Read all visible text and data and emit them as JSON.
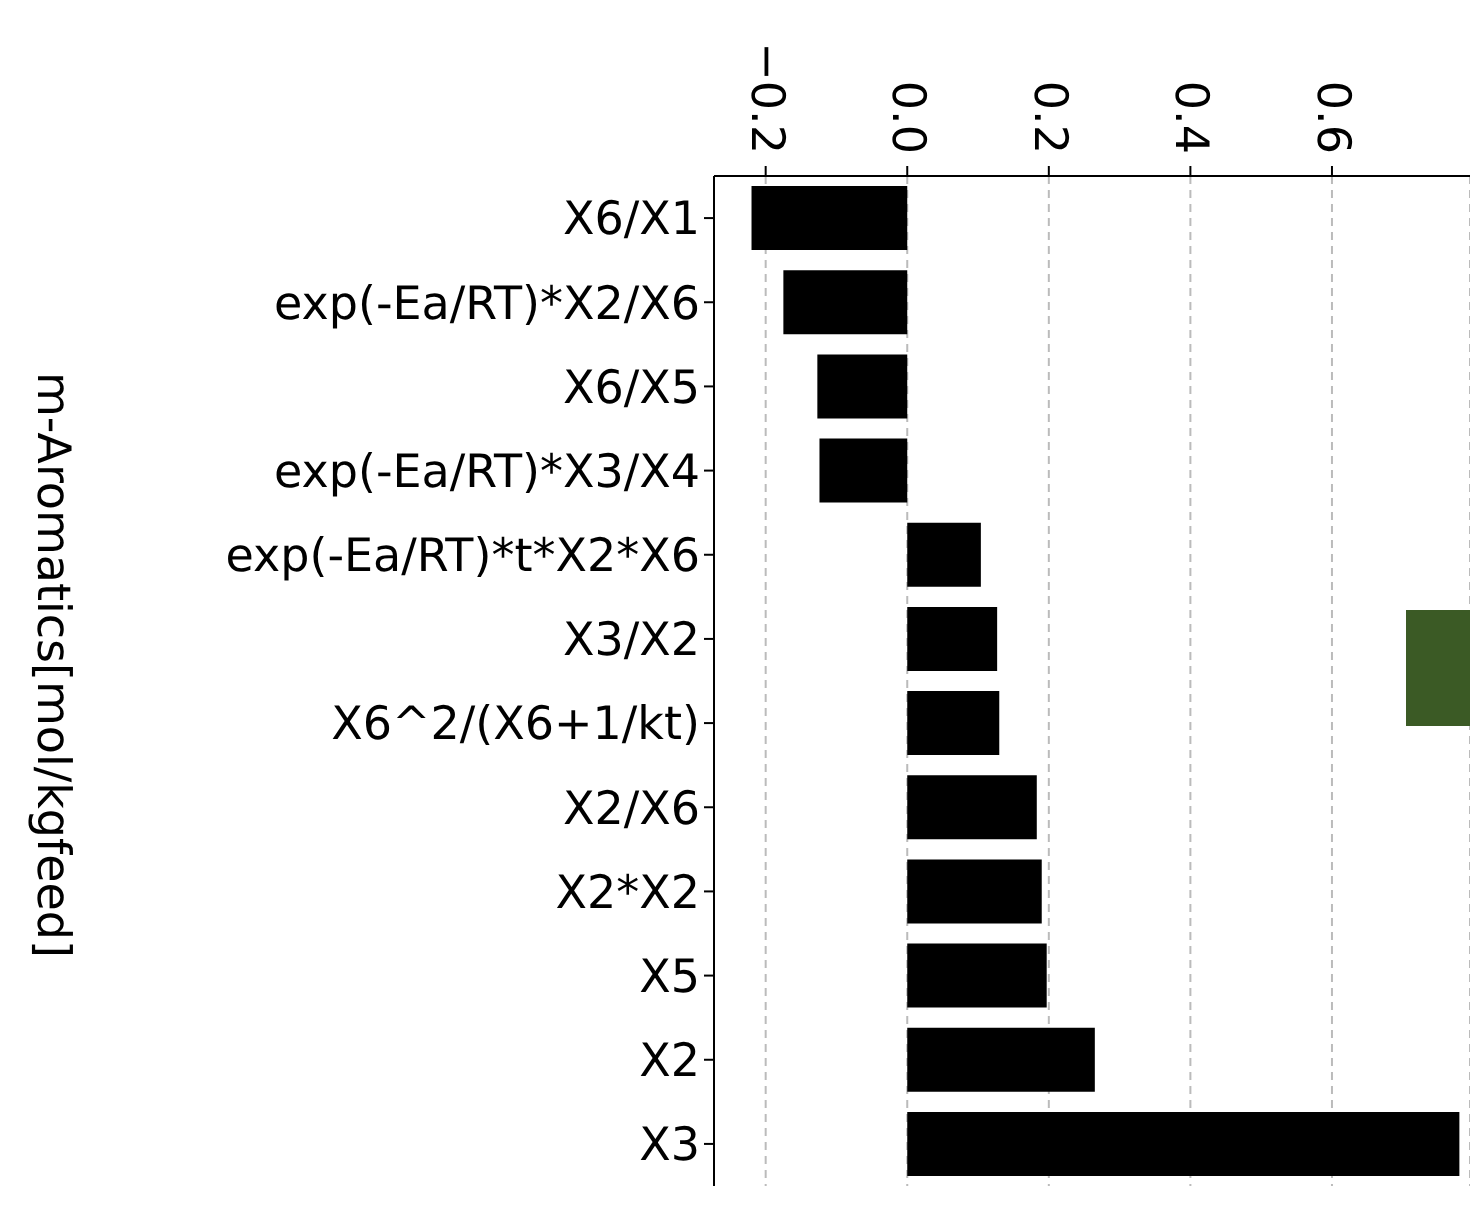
{
  "chart_data": {
    "type": "bar",
    "orientation": "horizontal",
    "ylabel": "m-Aromatics[mol/kgfeed]",
    "categories": [
      "X6/X1",
      "exp(-Ea/RT)*X2/X6",
      "X6/X5",
      "exp(-Ea/RT)*X3/X4",
      "exp(-Ea/RT)*t*X2*X6",
      "X3/X2",
      "X6^2/(X6+1/kt)",
      "X2/X6",
      "X2*X2",
      "X5",
      "X2",
      "X3"
    ],
    "values": [
      -0.22,
      -0.175,
      -0.127,
      -0.124,
      0.104,
      0.127,
      0.13,
      0.183,
      0.19,
      0.197,
      0.265,
      0.78
    ],
    "color": "#000000",
    "xlim": [
      -0.273,
      0.795
    ],
    "xticks": [
      {
        "value": -0.2,
        "label": "−0.2"
      },
      {
        "value": 0,
        "label": "0.0"
      },
      {
        "value": 0.2,
        "label": "0.2"
      },
      {
        "value": 0.4,
        "label": "0.4"
      },
      {
        "value": 0.6,
        "label": "0.6"
      }
    ],
    "grid": "x"
  }
}
